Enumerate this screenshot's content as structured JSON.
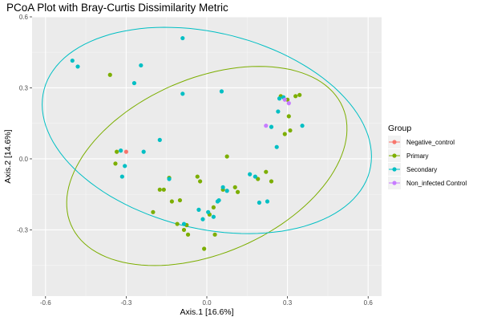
{
  "chart_data": {
    "type": "scatter",
    "title": "PCoA Plot with Bray-Curtis Dissimilarity Metric",
    "xlabel": "Axis.1   [16.6%]",
    "ylabel": "Axis.2   [14.6%]",
    "xlim": [
      -0.65,
      0.65
    ],
    "ylim": [
      -0.58,
      0.6
    ],
    "xticks": [
      -0.6,
      -0.3,
      0.0,
      0.3,
      0.6
    ],
    "xtick_labels": [
      "-0.6",
      "-0.3",
      "0.0",
      "0.3",
      "0.6"
    ],
    "yticks": [
      -0.3,
      0.0,
      0.3,
      0.6
    ],
    "ytick_labels": [
      "-0.3",
      "0.0",
      "0.3",
      "0.6"
    ],
    "grid": true,
    "legend": {
      "title": "Group",
      "placement": "right"
    },
    "series": [
      {
        "name": "Negative_control",
        "color": "#F8766D",
        "points": [
          [
            -0.3,
            0.03
          ]
        ]
      },
      {
        "name": "Primary",
        "color": "#7CAE00",
        "points": [
          [
            -0.36,
            0.355
          ],
          [
            -0.34,
            -0.02
          ],
          [
            -0.335,
            0.03
          ],
          [
            -0.2,
            -0.225
          ],
          [
            -0.175,
            -0.13
          ],
          [
            -0.16,
            -0.13
          ],
          [
            -0.14,
            -0.08
          ],
          [
            -0.13,
            -0.18
          ],
          [
            -0.11,
            -0.275
          ],
          [
            -0.1,
            -0.175
          ],
          [
            -0.085,
            -0.3
          ],
          [
            -0.075,
            -0.28
          ],
          [
            -0.07,
            -0.32
          ],
          [
            -0.035,
            -0.075
          ],
          [
            -0.025,
            -0.095
          ],
          [
            -0.01,
            -0.38
          ],
          [
            0.01,
            -0.235
          ],
          [
            0.025,
            -0.205
          ],
          [
            0.03,
            -0.32
          ],
          [
            0.06,
            -0.13
          ],
          [
            0.075,
            0.01
          ],
          [
            0.105,
            -0.12
          ],
          [
            0.115,
            -0.14
          ],
          [
            0.19,
            -0.085
          ],
          [
            0.22,
            -0.055
          ],
          [
            0.24,
            -0.095
          ],
          [
            0.275,
            0.265
          ],
          [
            0.29,
            0.105
          ],
          [
            0.305,
            0.18
          ],
          [
            0.31,
            0.12
          ],
          [
            0.33,
            0.265
          ],
          [
            0.345,
            0.27
          ],
          [
            0.3,
            0.25
          ]
        ]
      },
      {
        "name": "Secondary",
        "color": "#00BFC4",
        "points": [
          [
            -0.5,
            0.415
          ],
          [
            -0.48,
            0.39
          ],
          [
            -0.32,
            0.035
          ],
          [
            -0.315,
            -0.075
          ],
          [
            -0.305,
            -0.03
          ],
          [
            -0.27,
            0.32
          ],
          [
            -0.245,
            0.395
          ],
          [
            -0.235,
            0.03
          ],
          [
            -0.175,
            0.08
          ],
          [
            -0.14,
            -0.085
          ],
          [
            -0.09,
            0.51
          ],
          [
            -0.09,
            0.275
          ],
          [
            -0.085,
            -0.275
          ],
          [
            -0.03,
            -0.215
          ],
          [
            -0.015,
            -0.255
          ],
          [
            0.005,
            -0.225
          ],
          [
            0.025,
            -0.245
          ],
          [
            0.04,
            -0.18
          ],
          [
            0.045,
            -0.175
          ],
          [
            0.055,
            0.285
          ],
          [
            0.06,
            -0.12
          ],
          [
            0.075,
            -0.135
          ],
          [
            0.16,
            -0.065
          ],
          [
            0.18,
            -0.075
          ],
          [
            0.195,
            -0.185
          ],
          [
            0.225,
            -0.18
          ],
          [
            0.24,
            0.135
          ],
          [
            0.26,
            0.05
          ],
          [
            0.265,
            0.2
          ],
          [
            0.27,
            0.255
          ],
          [
            0.285,
            0.26
          ],
          [
            0.355,
            0.14
          ]
        ]
      },
      {
        "name": "Non_infected Control",
        "color": "#C77CFF",
        "points": [
          [
            0.22,
            0.14
          ],
          [
            0.29,
            0.25
          ],
          [
            0.305,
            0.235
          ]
        ]
      }
    ],
    "ellipses": [
      {
        "group": "Primary",
        "color": "#7CAE00",
        "cx": 0.0,
        "cy": -0.03,
        "rx": 0.565,
        "ry": 0.36,
        "angle_deg": 30
      },
      {
        "group": "Secondary",
        "color": "#00BFC4",
        "cx": 0.0,
        "cy": 0.12,
        "rx": 0.63,
        "ry": 0.41,
        "angle_deg": -18
      }
    ]
  }
}
